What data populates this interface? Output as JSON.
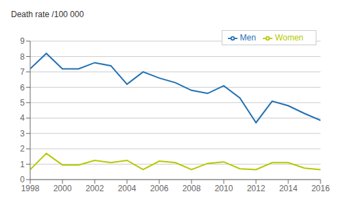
{
  "chart_data": {
    "type": "line",
    "ylabel": "Death rate /100 000",
    "x": [
      1998,
      1999,
      2000,
      2001,
      2002,
      2003,
      2004,
      2005,
      2006,
      2007,
      2008,
      2009,
      2010,
      2011,
      2012,
      2013,
      2014,
      2015,
      2016
    ],
    "series": [
      {
        "name": "Men",
        "color": "#1f6fb2",
        "values": [
          7.2,
          8.2,
          7.2,
          7.2,
          7.6,
          7.4,
          6.2,
          7.0,
          6.6,
          6.3,
          5.8,
          5.6,
          6.1,
          5.3,
          3.7,
          5.1,
          4.8,
          4.3,
          3.85
        ]
      },
      {
        "name": "Women",
        "color": "#b5c900",
        "values": [
          0.65,
          1.7,
          0.95,
          0.95,
          1.25,
          1.1,
          1.25,
          0.65,
          1.2,
          1.1,
          0.65,
          1.05,
          1.15,
          0.7,
          0.65,
          1.1,
          1.1,
          0.75,
          0.65
        ]
      }
    ],
    "xlim": [
      1998,
      2016
    ],
    "ylim": [
      0,
      9
    ],
    "xticks": [
      1998,
      2000,
      2002,
      2004,
      2006,
      2008,
      2010,
      2012,
      2014,
      2016
    ],
    "yticks": [
      0,
      1,
      2,
      3,
      4,
      5,
      6,
      7,
      8,
      9
    ],
    "grid": true,
    "legend": "upper right"
  }
}
